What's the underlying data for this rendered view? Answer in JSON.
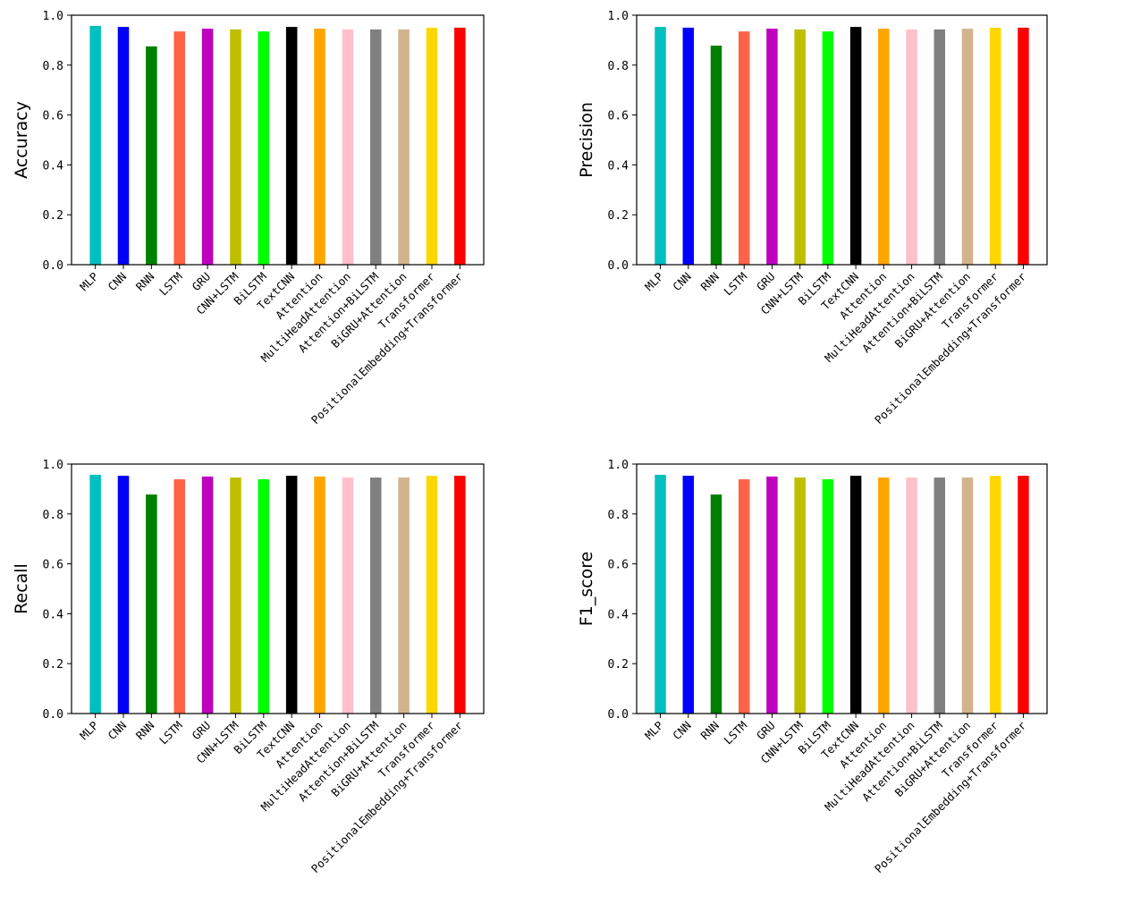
{
  "chart_data": [
    {
      "type": "bar",
      "ylabel": "Accuracy",
      "xlabel": "",
      "ylim": [
        0,
        1.0
      ],
      "yticks": [
        "0.0",
        "0.2",
        "0.4",
        "0.6",
        "0.8",
        "1.0"
      ],
      "categories": [
        "MLP",
        "CNN",
        "RNN",
        "LSTM",
        "GRU",
        "CNN+LSTM",
        "BiLSTM",
        "TextCNN",
        "Attention",
        "MultiHeadAttention",
        "Attention+BiLSTM",
        "BiGRU+Attention",
        "Transformer",
        "PositionalEmbedding+Transformer"
      ],
      "values": [
        0.957,
        0.953,
        0.875,
        0.935,
        0.946,
        0.943,
        0.935,
        0.953,
        0.946,
        0.943,
        0.943,
        0.943,
        0.95,
        0.95
      ],
      "grid": false
    },
    {
      "type": "bar",
      "ylabel": "Precision",
      "xlabel": "",
      "ylim": [
        0,
        1.0
      ],
      "yticks": [
        "0.0",
        "0.2",
        "0.4",
        "0.6",
        "0.8",
        "1.0"
      ],
      "categories": [
        "MLP",
        "CNN",
        "RNN",
        "LSTM",
        "GRU",
        "CNN+LSTM",
        "BiLSTM",
        "TextCNN",
        "Attention",
        "MultiHeadAttention",
        "Attention+BiLSTM",
        "BiGRU+Attention",
        "Transformer",
        "PositionalEmbedding+Transformer"
      ],
      "values": [
        0.953,
        0.95,
        0.878,
        0.935,
        0.946,
        0.943,
        0.935,
        0.953,
        0.946,
        0.943,
        0.943,
        0.946,
        0.95,
        0.95
      ],
      "grid": false
    },
    {
      "type": "bar",
      "ylabel": "Recall",
      "xlabel": "",
      "ylim": [
        0,
        1.0
      ],
      "yticks": [
        "0.0",
        "0.2",
        "0.4",
        "0.6",
        "0.8",
        "1.0"
      ],
      "categories": [
        "MLP",
        "CNN",
        "RNN",
        "LSTM",
        "GRU",
        "CNN+LSTM",
        "BiLSTM",
        "TextCNN",
        "Attention",
        "MultiHeadAttention",
        "Attention+BiLSTM",
        "BiGRU+Attention",
        "Transformer",
        "PositionalEmbedding+Transformer"
      ],
      "values": [
        0.957,
        0.953,
        0.878,
        0.939,
        0.95,
        0.946,
        0.939,
        0.953,
        0.95,
        0.946,
        0.946,
        0.946,
        0.953,
        0.953
      ],
      "grid": false
    },
    {
      "type": "bar",
      "ylabel": "F1_score",
      "xlabel": "",
      "ylim": [
        0,
        1.0
      ],
      "yticks": [
        "0.0",
        "0.2",
        "0.4",
        "0.6",
        "0.8",
        "1.0"
      ],
      "categories": [
        "MLP",
        "CNN",
        "RNN",
        "LSTM",
        "GRU",
        "CNN+LSTM",
        "BiLSTM",
        "TextCNN",
        "Attention",
        "MultiHeadAttention",
        "Attention+BiLSTM",
        "BiGRU+Attention",
        "Transformer",
        "PositionalEmbedding+Transformer"
      ],
      "values": [
        0.957,
        0.953,
        0.878,
        0.939,
        0.95,
        0.946,
        0.939,
        0.953,
        0.946,
        0.946,
        0.946,
        0.946,
        0.953,
        0.953
      ],
      "grid": false
    }
  ],
  "colors": [
    "#00bfbf",
    "#0000ff",
    "#008000",
    "#ff6347",
    "#bf00bf",
    "#bfbf00",
    "#00ff00",
    "#000000",
    "#ffa500",
    "#ffc0cb",
    "#808080",
    "#d2b48c",
    "#ffd700",
    "#ff0000"
  ]
}
